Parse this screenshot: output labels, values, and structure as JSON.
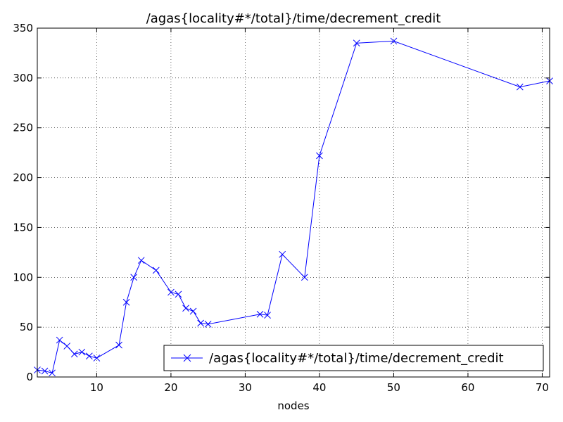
{
  "chart_data": {
    "type": "line",
    "title": "/agas{locality#*/total}/time/decrement_credit",
    "xlabel": "nodes",
    "ylabel": "",
    "xlim": [
      2,
      71
    ],
    "ylim": [
      0,
      350
    ],
    "xticks": [
      10,
      20,
      30,
      40,
      50,
      60,
      70
    ],
    "yticks": [
      0,
      50,
      100,
      150,
      200,
      250,
      300,
      350
    ],
    "grid": true,
    "legend_position": "lower-right",
    "series": [
      {
        "name": "/agas{locality#*/total}/time/decrement_credit",
        "color": "#0000ff",
        "marker": "x",
        "x": [
          2,
          3,
          4,
          5,
          6,
          7,
          8,
          9,
          10,
          13,
          14,
          15,
          16,
          18,
          20,
          21,
          22,
          23,
          24,
          25,
          32,
          33,
          35,
          38,
          40,
          45,
          50,
          67,
          71
        ],
        "y": [
          7,
          6,
          4,
          37,
          31,
          23,
          25,
          21,
          19,
          32,
          75,
          100,
          117,
          107,
          85,
          83,
          69,
          66,
          54,
          53,
          63,
          62,
          123,
          100,
          222,
          335,
          337,
          291,
          297
        ]
      }
    ]
  }
}
